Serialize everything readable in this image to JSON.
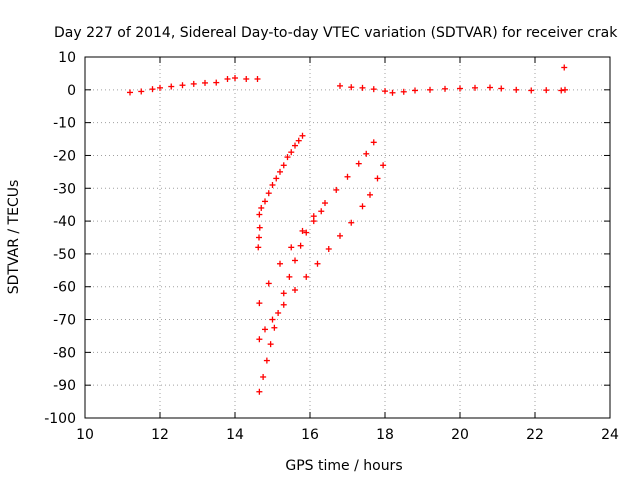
{
  "chart_data": {
    "type": "scatter",
    "title": "Day 227 of 2014, Sidereal Day-to-day VTEC variation (SDTVAR) for receiver crak",
    "xlabel": "GPS time / hours",
    "ylabel": "SDTVAR / TECUs",
    "xlim": [
      10,
      24
    ],
    "ylim": [
      -100,
      10
    ],
    "x_ticks": [
      10,
      12,
      14,
      16,
      18,
      20,
      22,
      24
    ],
    "y_ticks": [
      10,
      0,
      -10,
      -20,
      -30,
      -40,
      -50,
      -60,
      -70,
      -80,
      -90,
      -100
    ],
    "grid": true,
    "marker": "plus",
    "marker_color": "#ff0000",
    "series": [
      {
        "points": [
          [
            11.2,
            -0.8
          ],
          [
            11.5,
            -0.5
          ],
          [
            11.8,
            0.2
          ],
          [
            12.0,
            0.6
          ],
          [
            12.3,
            1.0
          ],
          [
            12.6,
            1.4
          ],
          [
            12.9,
            1.8
          ],
          [
            13.2,
            2.1
          ],
          [
            13.5,
            2.2
          ],
          [
            13.8,
            3.3
          ],
          [
            14.0,
            3.6
          ],
          [
            14.3,
            3.3
          ],
          [
            14.6,
            3.3
          ],
          [
            16.8,
            1.2
          ],
          [
            17.1,
            0.8
          ],
          [
            17.4,
            0.6
          ],
          [
            17.7,
            0.2
          ],
          [
            18.0,
            -0.4
          ],
          [
            18.2,
            -0.9
          ],
          [
            18.5,
            -0.6
          ],
          [
            18.8,
            -0.2
          ],
          [
            19.2,
            0.0
          ],
          [
            19.6,
            0.3
          ],
          [
            20.0,
            0.4
          ],
          [
            20.4,
            0.6
          ],
          [
            20.8,
            0.7
          ],
          [
            21.1,
            0.4
          ],
          [
            21.5,
            0.0
          ],
          [
            21.9,
            -0.2
          ],
          [
            22.3,
            -0.1
          ],
          [
            22.7,
            -0.2
          ],
          [
            22.8,
            0.0
          ],
          [
            22.78,
            6.8
          ],
          [
            14.65,
            -38.0
          ],
          [
            14.7,
            -36.0
          ],
          [
            14.8,
            -34.0
          ],
          [
            14.9,
            -31.5
          ],
          [
            15.0,
            -29.0
          ],
          [
            15.1,
            -27.0
          ],
          [
            15.2,
            -25.0
          ],
          [
            15.3,
            -23.0
          ],
          [
            15.4,
            -20.5
          ],
          [
            15.5,
            -19.0
          ],
          [
            15.6,
            -17.0
          ],
          [
            15.7,
            -15.5
          ],
          [
            15.8,
            -14.0
          ],
          [
            14.62,
            -48.0
          ],
          [
            14.64,
            -45.0
          ],
          [
            14.66,
            -42.0
          ],
          [
            14.65,
            -65.0
          ],
          [
            14.9,
            -59.0
          ],
          [
            15.2,
            -53.0
          ],
          [
            15.5,
            -48.0
          ],
          [
            15.8,
            -43.0
          ],
          [
            16.1,
            -38.5
          ],
          [
            16.4,
            -34.5
          ],
          [
            16.7,
            -30.5
          ],
          [
            17.0,
            -26.5
          ],
          [
            17.3,
            -22.5
          ],
          [
            17.5,
            -19.5
          ],
          [
            17.7,
            -16.0
          ],
          [
            14.65,
            -76.0
          ],
          [
            14.8,
            -73.0
          ],
          [
            15.0,
            -70.0
          ],
          [
            15.3,
            -65.5
          ],
          [
            15.6,
            -61.0
          ],
          [
            15.9,
            -57.0
          ],
          [
            16.2,
            -53.0
          ],
          [
            16.5,
            -48.5
          ],
          [
            16.8,
            -44.5
          ],
          [
            17.1,
            -40.5
          ],
          [
            17.4,
            -35.5
          ],
          [
            17.6,
            -32.0
          ],
          [
            17.8,
            -27.0
          ],
          [
            17.95,
            -23.0
          ],
          [
            14.65,
            -92.0
          ],
          [
            14.75,
            -87.5
          ],
          [
            14.85,
            -82.5
          ],
          [
            14.95,
            -77.5
          ],
          [
            15.05,
            -72.5
          ],
          [
            15.15,
            -68.0
          ],
          [
            15.3,
            -62.0
          ],
          [
            15.45,
            -57.0
          ],
          [
            15.6,
            -52.0
          ],
          [
            15.75,
            -47.5
          ],
          [
            15.9,
            -43.5
          ],
          [
            16.1,
            -40.0
          ],
          [
            16.3,
            -37.0
          ]
        ]
      }
    ]
  }
}
